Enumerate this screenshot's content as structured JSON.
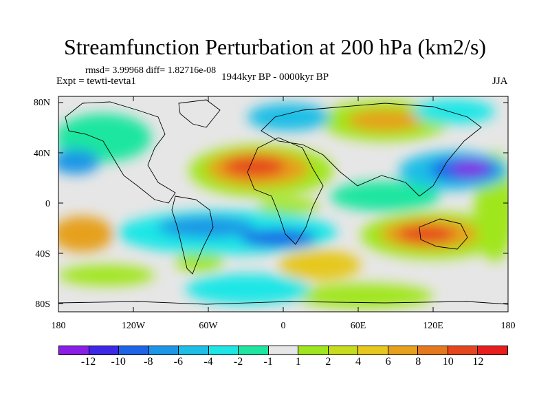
{
  "title": "Streamfunction Perturbation at 200 hPa (km2/s)",
  "subtitle_stats": "rmsd= 3.99968 diff= 1.82716e-08",
  "experiment": "Expt = tewti-tevta1",
  "period": "1944kyr BP - 0000kyr BP",
  "season": "JJA",
  "lat_labels": [
    "80N",
    "40N",
    "0",
    "40S",
    "80S"
  ],
  "lon_labels": [
    "180",
    "120W",
    "60W",
    "0",
    "60E",
    "120E",
    "180"
  ],
  "colorbar": {
    "labels": [
      "-12",
      "-10",
      "-8",
      "-6",
      "-4",
      "-2",
      "-1",
      "1",
      "2",
      "4",
      "6",
      "8",
      "10",
      "12"
    ],
    "colors": [
      "#8a1ee6",
      "#3c28e6",
      "#1e64e6",
      "#1e96e6",
      "#1ebee6",
      "#1ee6e6",
      "#1ee6a0",
      "#e6e6e6",
      "#a0e61e",
      "#c8dc1e",
      "#e6c81e",
      "#e6a01e",
      "#e6781e",
      "#e6461e",
      "#e61e1e"
    ]
  }
}
